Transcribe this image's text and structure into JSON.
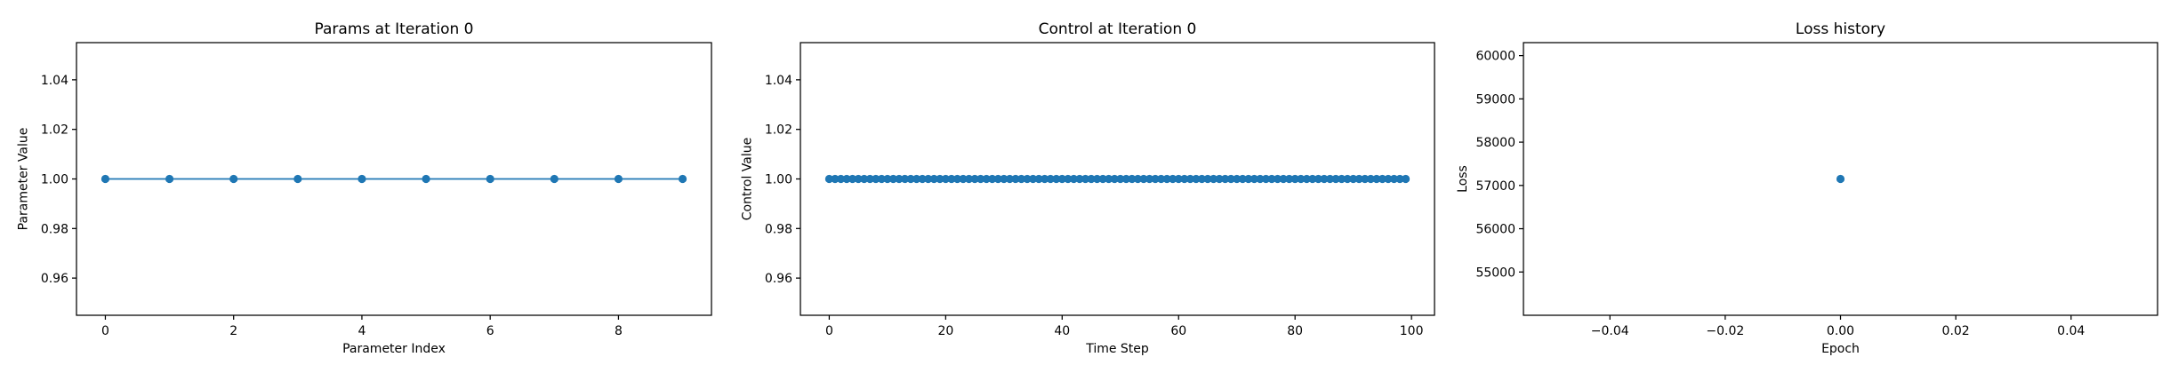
{
  "chart_data": [
    {
      "type": "line",
      "title": "Params at Iteration 0",
      "xlabel": "Parameter Index",
      "ylabel": "Parameter Value",
      "xlim": [
        -0.45,
        9.45
      ],
      "ylim": [
        0.945,
        1.055
      ],
      "xticks": [
        0,
        2,
        4,
        6,
        8
      ],
      "xtick_labels": [
        "0",
        "2",
        "4",
        "6",
        "8"
      ],
      "yticks": [
        0.96,
        0.98,
        1.0,
        1.02,
        1.04
      ],
      "ytick_labels": [
        "0.96",
        "0.98",
        "1.00",
        "1.02",
        "1.04"
      ],
      "markers": true,
      "line": true,
      "color": "#1f77b4",
      "grid": false,
      "x": [
        0,
        1,
        2,
        3,
        4,
        5,
        6,
        7,
        8,
        9
      ],
      "y": [
        1,
        1,
        1,
        1,
        1,
        1,
        1,
        1,
        1,
        1
      ]
    },
    {
      "type": "line",
      "title": "Control at Iteration 0",
      "xlabel": "Time Step",
      "ylabel": "Control Value",
      "xlim": [
        -4.95,
        103.95
      ],
      "ylim": [
        0.945,
        1.055
      ],
      "xticks": [
        0,
        20,
        40,
        60,
        80,
        100
      ],
      "xtick_labels": [
        "0",
        "20",
        "40",
        "60",
        "80",
        "100"
      ],
      "yticks": [
        0.96,
        0.98,
        1.0,
        1.02,
        1.04
      ],
      "ytick_labels": [
        "0.96",
        "0.98",
        "1.00",
        "1.02",
        "1.04"
      ],
      "markers": true,
      "line": true,
      "color": "#1f77b4",
      "grid": false,
      "x": [
        0,
        1,
        2,
        3,
        4,
        5,
        6,
        7,
        8,
        9,
        10,
        11,
        12,
        13,
        14,
        15,
        16,
        17,
        18,
        19,
        20,
        21,
        22,
        23,
        24,
        25,
        26,
        27,
        28,
        29,
        30,
        31,
        32,
        33,
        34,
        35,
        36,
        37,
        38,
        39,
        40,
        41,
        42,
        43,
        44,
        45,
        46,
        47,
        48,
        49,
        50,
        51,
        52,
        53,
        54,
        55,
        56,
        57,
        58,
        59,
        60,
        61,
        62,
        63,
        64,
        65,
        66,
        67,
        68,
        69,
        70,
        71,
        72,
        73,
        74,
        75,
        76,
        77,
        78,
        79,
        80,
        81,
        82,
        83,
        84,
        85,
        86,
        87,
        88,
        89,
        90,
        91,
        92,
        93,
        94,
        95,
        96,
        97,
        98,
        99
      ],
      "y": [
        1,
        1,
        1,
        1,
        1,
        1,
        1,
        1,
        1,
        1,
        1,
        1,
        1,
        1,
        1,
        1,
        1,
        1,
        1,
        1,
        1,
        1,
        1,
        1,
        1,
        1,
        1,
        1,
        1,
        1,
        1,
        1,
        1,
        1,
        1,
        1,
        1,
        1,
        1,
        1,
        1,
        1,
        1,
        1,
        1,
        1,
        1,
        1,
        1,
        1,
        1,
        1,
        1,
        1,
        1,
        1,
        1,
        1,
        1,
        1,
        1,
        1,
        1,
        1,
        1,
        1,
        1,
        1,
        1,
        1,
        1,
        1,
        1,
        1,
        1,
        1,
        1,
        1,
        1,
        1,
        1,
        1,
        1,
        1,
        1,
        1,
        1,
        1,
        1,
        1,
        1,
        1,
        1,
        1,
        1,
        1,
        1,
        1,
        1,
        1
      ]
    },
    {
      "type": "scatter",
      "title": "Loss history",
      "xlabel": "Epoch",
      "ylabel": "Loss",
      "xlim": [
        -0.055,
        0.055
      ],
      "ylim": [
        54000,
        60300
      ],
      "xticks": [
        -0.04,
        -0.02,
        0.0,
        0.02,
        0.04
      ],
      "xtick_labels": [
        "−0.04",
        "−0.02",
        "0.00",
        "0.02",
        "0.04"
      ],
      "yticks": [
        55000,
        56000,
        57000,
        58000,
        59000,
        60000
      ],
      "ytick_labels": [
        "55000",
        "56000",
        "57000",
        "58000",
        "59000",
        "60000"
      ],
      "markers": true,
      "line": false,
      "color": "#1f77b4",
      "grid": false,
      "x": [
        0
      ],
      "y": [
        57150
      ]
    }
  ]
}
